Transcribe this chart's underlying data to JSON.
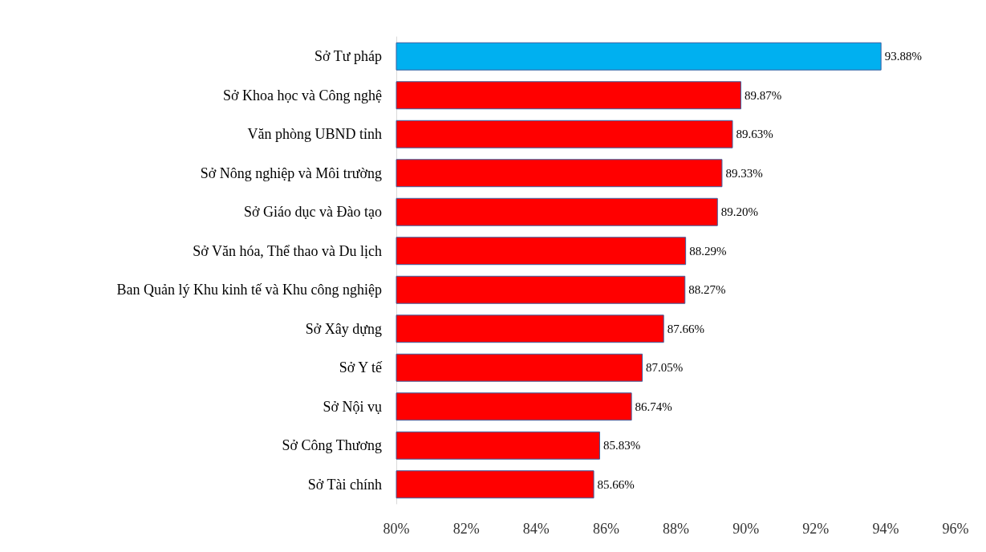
{
  "chart_data": {
    "type": "bar",
    "orientation": "horizontal",
    "categories": [
      "Sở Tư pháp",
      "Sở Khoa học và Công nghệ",
      "Văn phòng UBND tỉnh",
      "Sở Nông nghiệp và Môi trường",
      "Sở Giáo dục và Đào tạo",
      "Sở Văn hóa, Thể thao và Du lịch",
      "Ban Quản lý Khu kinh tế và Khu công nghiệp",
      "Sở Xây dựng",
      "Sở Y tế",
      "Sở Nội vụ",
      "Sở Công Thương",
      "Sở Tài chính"
    ],
    "values": [
      93.88,
      89.87,
      89.63,
      89.33,
      89.2,
      88.29,
      88.27,
      87.66,
      87.05,
      86.74,
      85.83,
      85.66
    ],
    "value_labels": [
      "93.88%",
      "89.87%",
      "89.63%",
      "89.33%",
      "89.20%",
      "88.29%",
      "88.27%",
      "87.66%",
      "87.05%",
      "86.74%",
      "85.83%",
      "85.66%"
    ],
    "colors": [
      "#00b0f0",
      "#ff0000",
      "#ff0000",
      "#ff0000",
      "#ff0000",
      "#ff0000",
      "#ff0000",
      "#ff0000",
      "#ff0000",
      "#ff0000",
      "#ff0000",
      "#ff0000"
    ],
    "xlim": [
      80,
      96
    ],
    "xticks": [
      {
        "value": 80,
        "label": "80%"
      },
      {
        "value": 82,
        "label": "82%"
      },
      {
        "value": 84,
        "label": "84%"
      },
      {
        "value": 86,
        "label": "86%"
      },
      {
        "value": 88,
        "label": "88%"
      },
      {
        "value": 90,
        "label": "90%"
      },
      {
        "value": 92,
        "label": "92%"
      },
      {
        "value": 94,
        "label": "94%"
      },
      {
        "value": 96,
        "label": "96%"
      }
    ],
    "grid": false
  }
}
